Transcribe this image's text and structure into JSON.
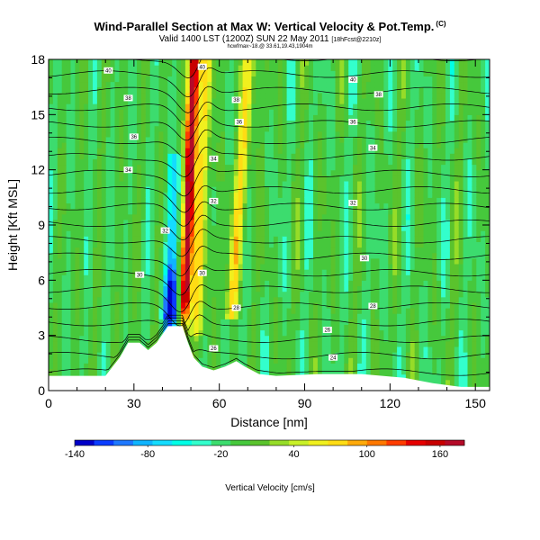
{
  "header": {
    "title": "Wind-Parallel Section at Max W: Vertical Velocity & Pot.Temp.",
    "copyright": "(C)",
    "subtitle_main": "Valid 1400 LST (1200Z) SUN 22 May 2011",
    "subtitle_small": "[18hFcst@2210z]",
    "subtitle2": "hcwfmax~18.@ 33.61,19.43,1904m"
  },
  "colorbar": {
    "tick_labels": [
      "-140",
      "-80",
      "-20",
      "40",
      "100",
      "160"
    ],
    "label": "Vertical Velocity [cm/s]",
    "colors": [
      "#0000c8",
      "#0a3cff",
      "#1e78ff",
      "#0fb4ff",
      "#14dcff",
      "#00ffe6",
      "#33ffcc",
      "#3cdc6e",
      "#46c83c",
      "#5ac32d",
      "#96dc28",
      "#c8f028",
      "#f0f01e",
      "#ffdc14",
      "#ffaa0a",
      "#ff7800",
      "#ff3c00",
      "#e60000",
      "#c80000",
      "#b40a28"
    ]
  },
  "chart_data": {
    "type": "heatmap",
    "title": "Wind-Parallel Section at Max W: Vertical Velocity & Pot.Temp.",
    "xlabel": "Distance [nm]",
    "ylabel": "Height [Kft MSL]",
    "xlim": [
      0,
      155
    ],
    "ylim": [
      0,
      18
    ],
    "xticks": [
      0,
      30,
      60,
      90,
      120,
      150
    ],
    "yticks": [
      0,
      3,
      6,
      9,
      12,
      15,
      18
    ],
    "color_variable": "Vertical Velocity [cm/s]",
    "color_range": [
      -140,
      180
    ],
    "contour_variable": "Potential temperature",
    "contour_labels": [
      {
        "x": 21,
        "y": 17.4,
        "text": "40"
      },
      {
        "x": 28,
        "y": 15.9,
        "text": "38"
      },
      {
        "x": 30,
        "y": 13.8,
        "text": "36"
      },
      {
        "x": 28,
        "y": 12.0,
        "text": "34"
      },
      {
        "x": 41,
        "y": 8.7,
        "text": "32"
      },
      {
        "x": 32,
        "y": 6.3,
        "text": "30"
      },
      {
        "x": 54,
        "y": 17.6,
        "text": "40"
      },
      {
        "x": 66,
        "y": 15.8,
        "text": "38"
      },
      {
        "x": 67,
        "y": 14.6,
        "text": "36"
      },
      {
        "x": 58,
        "y": 12.6,
        "text": "34"
      },
      {
        "x": 58,
        "y": 10.3,
        "text": "32"
      },
      {
        "x": 54,
        "y": 6.4,
        "text": "30"
      },
      {
        "x": 66,
        "y": 4.5,
        "text": "28"
      },
      {
        "x": 58,
        "y": 2.3,
        "text": "26"
      },
      {
        "x": 107,
        "y": 16.9,
        "text": "40"
      },
      {
        "x": 116,
        "y": 16.1,
        "text": "38"
      },
      {
        "x": 107,
        "y": 14.6,
        "text": "36"
      },
      {
        "x": 114,
        "y": 13.2,
        "text": "34"
      },
      {
        "x": 107,
        "y": 10.2,
        "text": "32"
      },
      {
        "x": 111,
        "y": 7.2,
        "text": "30"
      },
      {
        "x": 114,
        "y": 4.6,
        "text": "28"
      },
      {
        "x": 98,
        "y": 3.3,
        "text": "26"
      },
      {
        "x": 100,
        "y": 1.8,
        "text": "24"
      }
    ],
    "terrain": [
      [
        0,
        0.8
      ],
      [
        20,
        0.8
      ],
      [
        25,
        1.8
      ],
      [
        28,
        2.6
      ],
      [
        32,
        2.6
      ],
      [
        35,
        2.2
      ],
      [
        38,
        2.6
      ],
      [
        42,
        3.5
      ],
      [
        47,
        3.5
      ],
      [
        49,
        2.6
      ],
      [
        51,
        1.8
      ],
      [
        54,
        1.3
      ],
      [
        58,
        1.1
      ],
      [
        62,
        1.3
      ],
      [
        66,
        1.6
      ],
      [
        69,
        1.3
      ],
      [
        74,
        0.9
      ],
      [
        80,
        0.8
      ],
      [
        95,
        0.9
      ],
      [
        110,
        0.9
      ],
      [
        125,
        0.7
      ],
      [
        135,
        0.4
      ],
      [
        145,
        0.2
      ],
      [
        155,
        0.2
      ]
    ]
  }
}
